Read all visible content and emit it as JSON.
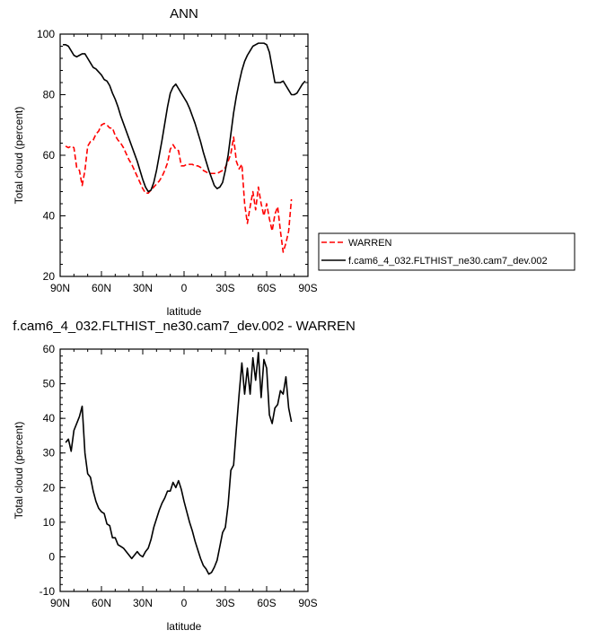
{
  "chart_data": [
    {
      "type": "line",
      "title": "ANN",
      "xlabel": "latitude",
      "ylabel": "Total cloud (percent)",
      "xlim": [
        90,
        -90
      ],
      "ylim": [
        20,
        100
      ],
      "x_ticks": [
        90,
        60,
        30,
        0,
        -30,
        -60,
        -90
      ],
      "x_tick_labels": [
        "90N",
        "60N",
        "30N",
        "0",
        "30S",
        "60S",
        "90S"
      ],
      "y_ticks": [
        20,
        40,
        60,
        80,
        100
      ],
      "y_tick_labels": [
        "20",
        "40",
        "60",
        "80",
        "100"
      ],
      "legend_position": "right-bottom, outside plot",
      "series": [
        {
          "name": "WARREN",
          "color": "#ff0000",
          "dash": "dashed",
          "x": [
            86,
            84,
            82,
            80,
            78,
            76,
            74,
            72,
            70,
            68,
            66,
            64,
            62,
            60,
            58,
            56,
            54,
            52,
            50,
            48,
            46,
            44,
            42,
            40,
            38,
            36,
            34,
            32,
            30,
            28,
            26,
            24,
            22,
            20,
            18,
            16,
            14,
            12,
            10,
            8,
            6,
            4,
            2,
            0,
            -2,
            -4,
            -6,
            -8,
            -10,
            -12,
            -14,
            -16,
            -18,
            -20,
            -22,
            -24,
            -26,
            -28,
            -30,
            -32,
            -34,
            -36,
            -38,
            -40,
            -42,
            -44,
            -46,
            -48,
            -50,
            -52,
            -54,
            -56,
            -58,
            -60,
            -62,
            -64,
            -66,
            -68,
            -70,
            -72,
            -74,
            -76,
            -78
          ],
          "y": [
            63,
            62.5,
            63,
            62.5,
            56,
            55,
            50,
            55,
            63,
            64.5,
            65,
            67,
            68,
            70,
            70.5,
            70,
            69,
            69,
            66.5,
            65,
            64,
            62.5,
            60.5,
            58.5,
            57,
            55,
            53,
            51,
            49,
            47.5,
            47.5,
            48.5,
            49.5,
            50.5,
            51.5,
            53,
            55,
            57.5,
            62,
            63.5,
            62,
            61.5,
            56.5,
            56.5,
            57,
            57,
            57,
            56.5,
            56.5,
            56,
            55,
            54.5,
            54,
            54,
            54,
            54,
            54.5,
            55,
            56,
            58,
            60.5,
            66,
            58,
            55.5,
            57,
            44,
            37.5,
            43,
            48,
            42,
            49.5,
            44,
            40,
            44,
            39,
            35,
            40.5,
            43,
            35,
            28,
            31,
            35,
            45.5
          ]
        },
        {
          "name": "f.cam6_4_032.FLTHIST_ne30.cam7_dev.002",
          "color": "#000000",
          "dash": "solid",
          "x": [
            88,
            86,
            84,
            82,
            80,
            78,
            76,
            74,
            72,
            70,
            68,
            66,
            64,
            62,
            60,
            58,
            56,
            54,
            52,
            50,
            48,
            46,
            44,
            42,
            40,
            38,
            36,
            34,
            32,
            30,
            28,
            26,
            24,
            22,
            20,
            18,
            16,
            14,
            12,
            10,
            8,
            6,
            4,
            2,
            0,
            -2,
            -4,
            -6,
            -8,
            -10,
            -12,
            -14,
            -16,
            -18,
            -20,
            -22,
            -24,
            -26,
            -28,
            -30,
            -32,
            -34,
            -36,
            -38,
            -40,
            -42,
            -44,
            -46,
            -48,
            -50,
            -52,
            -54,
            -56,
            -58,
            -60,
            -62,
            -64,
            -66,
            -68,
            -70,
            -72,
            -74,
            -76,
            -78,
            -80,
            -82,
            -84,
            -86,
            -88
          ],
          "y": [
            96.5,
            96.5,
            96,
            94.5,
            93,
            92.5,
            93,
            93.5,
            93.5,
            92,
            90.5,
            89,
            88.5,
            87.5,
            86.5,
            85,
            84.5,
            83,
            80.5,
            78.5,
            76,
            73,
            70.5,
            68,
            65.5,
            63,
            60.5,
            58,
            55,
            52,
            49.5,
            48,
            48.5,
            51,
            55,
            60,
            65,
            70.5,
            76,
            80.5,
            82.5,
            83.5,
            82,
            80.5,
            79,
            77.5,
            75.5,
            73,
            70.5,
            67.5,
            64.5,
            61,
            58,
            55,
            52.5,
            50,
            49,
            49.5,
            51,
            55,
            60,
            67,
            74,
            79.5,
            84,
            88,
            91,
            93,
            94.5,
            96,
            96.5,
            97,
            97,
            97,
            96.5,
            94,
            89,
            84,
            84,
            84,
            84.5,
            83,
            81.5,
            80,
            80,
            80.5,
            82,
            83.5,
            84.5
          ]
        }
      ]
    },
    {
      "type": "line",
      "title": "f.cam6_4_032.FLTHIST_ne30.cam7_dev.002 - WARREN",
      "xlabel": "latitude",
      "ylabel": "Total cloud (percent)",
      "xlim": [
        90,
        -90
      ],
      "ylim": [
        -10,
        60
      ],
      "x_ticks": [
        90,
        60,
        30,
        0,
        -30,
        -60,
        -90
      ],
      "x_tick_labels": [
        "90N",
        "60N",
        "30N",
        "0",
        "30S",
        "60S",
        "90S"
      ],
      "y_ticks": [
        -10,
        0,
        10,
        20,
        30,
        40,
        50,
        60
      ],
      "y_tick_labels": [
        "-10",
        "0",
        "10",
        "20",
        "30",
        "40",
        "50",
        "60"
      ],
      "series": [
        {
          "color": "#000000",
          "dash": "solid",
          "x": [
            86,
            84,
            82,
            80,
            78,
            76,
            74,
            72,
            70,
            68,
            66,
            64,
            62,
            60,
            58,
            56,
            54,
            52,
            50,
            48,
            46,
            44,
            42,
            40,
            38,
            36,
            34,
            32,
            30,
            28,
            26,
            24,
            22,
            20,
            18,
            16,
            14,
            12,
            10,
            8,
            6,
            4,
            2,
            0,
            -2,
            -4,
            -6,
            -8,
            -10,
            -12,
            -14,
            -16,
            -18,
            -20,
            -22,
            -24,
            -26,
            -28,
            -30,
            -32,
            -34,
            -36,
            -38,
            -40,
            -42,
            -44,
            -46,
            -48,
            -50,
            -52,
            -54,
            -56,
            -58,
            -60,
            -62,
            -64,
            -66,
            -68,
            -70,
            -72,
            -74,
            -76,
            -78
          ],
          "y": [
            33,
            34,
            30.5,
            36.5,
            38.5,
            40.5,
            43.5,
            30,
            24,
            23,
            19,
            16,
            14,
            13,
            12.5,
            9.5,
            9,
            5.5,
            5.5,
            3.5,
            3,
            2.5,
            1.5,
            0.5,
            -0.5,
            0.5,
            1.5,
            0.5,
            0,
            1.5,
            2.5,
            5,
            8.5,
            11,
            13.5,
            15.5,
            17,
            19,
            19,
            21.5,
            20,
            22,
            19.5,
            16,
            13,
            10,
            7.5,
            4.5,
            2,
            -0.5,
            -2.5,
            -3.5,
            -5,
            -4.5,
            -3,
            -1,
            3,
            7,
            8.5,
            15,
            25,
            26.5,
            37,
            47,
            56,
            47,
            54.5,
            47,
            57.5,
            51,
            59,
            46,
            57,
            54.5,
            41,
            38.5,
            43,
            44,
            48,
            47,
            52,
            43,
            39
          ]
        }
      ]
    }
  ]
}
